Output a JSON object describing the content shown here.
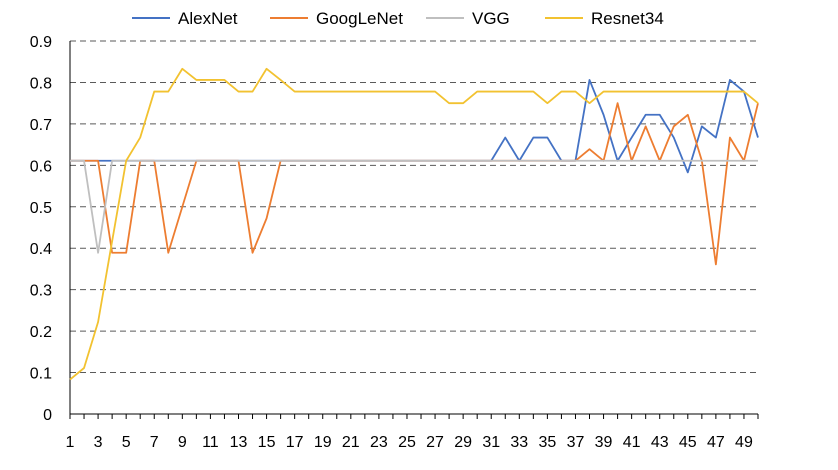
{
  "chart_data": {
    "type": "line",
    "title": "",
    "xlabel": "",
    "ylabel": "",
    "x": [
      1,
      2,
      3,
      4,
      5,
      6,
      7,
      8,
      9,
      10,
      11,
      12,
      13,
      14,
      15,
      16,
      17,
      18,
      19,
      20,
      21,
      22,
      23,
      24,
      25,
      26,
      27,
      28,
      29,
      30,
      31,
      32,
      33,
      34,
      35,
      36,
      37,
      38,
      39,
      40,
      41,
      42,
      43,
      44,
      45,
      46,
      47,
      48,
      49,
      50
    ],
    "x_tick_labels": [
      "1",
      "3",
      "5",
      "7",
      "9",
      "11",
      "13",
      "15",
      "17",
      "19",
      "21",
      "23",
      "25",
      "27",
      "29",
      "31",
      "33",
      "35",
      "37",
      "39",
      "41",
      "43",
      "45",
      "47",
      "49"
    ],
    "ylim": [
      0,
      0.9
    ],
    "y_ticks": [
      "0",
      "0.1",
      "0.2",
      "0.3",
      "0.4",
      "0.5",
      "0.6",
      "0.7",
      "0.8",
      "0.9"
    ],
    "grid": "horizontal dashed",
    "legend_position": "top",
    "series": [
      {
        "name": "AlexNet",
        "color": "#4472C4",
        "values": [
          0.611,
          0.611,
          0.611,
          0.611,
          0.611,
          0.611,
          0.611,
          0.611,
          0.611,
          0.611,
          0.611,
          0.611,
          0.611,
          0.611,
          0.611,
          0.611,
          0.611,
          0.611,
          0.611,
          0.611,
          0.611,
          0.611,
          0.611,
          0.611,
          0.611,
          0.611,
          0.611,
          0.611,
          0.611,
          0.611,
          0.611,
          0.667,
          0.611,
          0.667,
          0.667,
          0.611,
          0.611,
          0.806,
          0.722,
          0.611,
          0.667,
          0.722,
          0.722,
          0.667,
          0.583,
          0.694,
          0.667,
          0.806,
          0.778,
          0.667
        ]
      },
      {
        "name": "GoogLeNet",
        "color": "#ED7D31",
        "values": [
          0.611,
          0.611,
          0.611,
          0.389,
          0.389,
          0.611,
          0.611,
          0.389,
          0.5,
          0.611,
          0.611,
          0.611,
          0.611,
          0.389,
          0.472,
          0.611,
          0.611,
          0.611,
          0.611,
          0.611,
          0.611,
          0.611,
          0.611,
          0.611,
          0.611,
          0.611,
          0.611,
          0.611,
          0.611,
          0.611,
          0.611,
          0.611,
          0.611,
          0.611,
          0.611,
          0.611,
          0.611,
          0.639,
          0.611,
          0.75,
          0.611,
          0.694,
          0.611,
          0.694,
          0.722,
          0.611,
          0.361,
          0.667,
          0.611,
          0.75
        ]
      },
      {
        "name": "VGG",
        "color": "#BFBFBF",
        "values": [
          0.611,
          0.611,
          0.389,
          0.611,
          0.611,
          0.611,
          0.611,
          0.611,
          0.611,
          0.611,
          0.611,
          0.611,
          0.611,
          0.611,
          0.611,
          0.611,
          0.611,
          0.611,
          0.611,
          0.611,
          0.611,
          0.611,
          0.611,
          0.611,
          0.611,
          0.611,
          0.611,
          0.611,
          0.611,
          0.611,
          0.611,
          0.611,
          0.611,
          0.611,
          0.611,
          0.611,
          0.611,
          0.611,
          0.611,
          0.611,
          0.611,
          0.611,
          0.611,
          0.611,
          0.611,
          0.611,
          0.611,
          0.611,
          0.611,
          0.611
        ]
      },
      {
        "name": "Resnet34",
        "color": "#F2C230",
        "values": [
          0.083,
          0.111,
          0.222,
          0.417,
          0.611,
          0.667,
          0.778,
          0.778,
          0.833,
          0.806,
          0.806,
          0.806,
          0.778,
          0.778,
          0.833,
          0.806,
          0.778,
          0.778,
          0.778,
          0.778,
          0.778,
          0.778,
          0.778,
          0.778,
          0.778,
          0.778,
          0.778,
          0.75,
          0.75,
          0.778,
          0.778,
          0.778,
          0.778,
          0.778,
          0.75,
          0.778,
          0.778,
          0.75,
          0.778,
          0.778,
          0.778,
          0.778,
          0.778,
          0.778,
          0.778,
          0.778,
          0.778,
          0.778,
          0.778,
          0.75
        ]
      }
    ]
  }
}
